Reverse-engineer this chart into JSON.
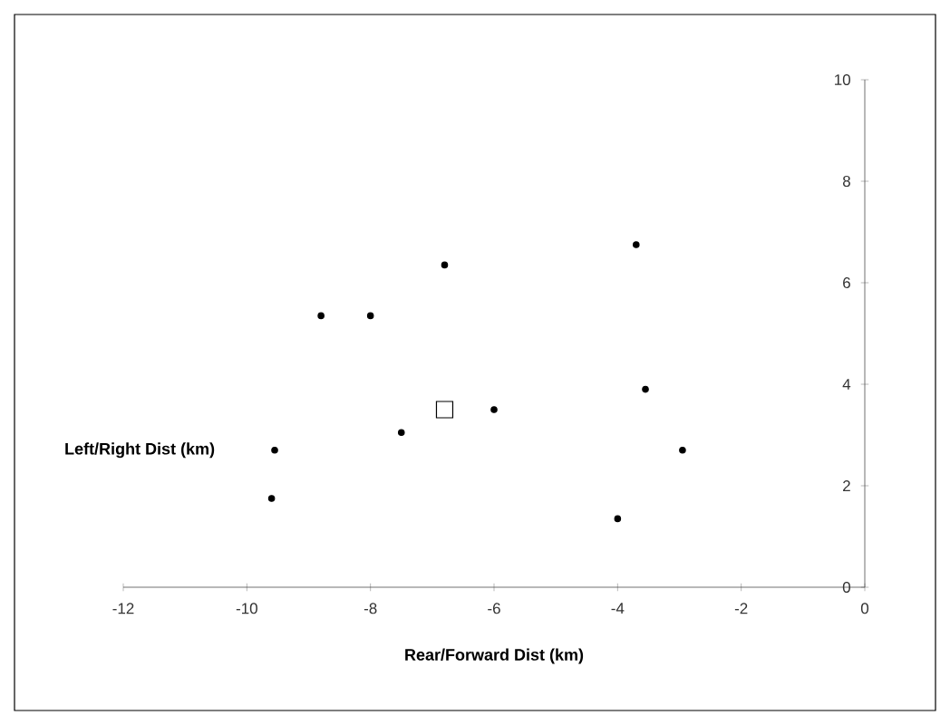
{
  "chart_data": {
    "type": "scatter",
    "xlabel": "Rear/Forward Dist (km)",
    "ylabel": "Left/Right Dist (km)",
    "xlim": [
      -12,
      0
    ],
    "ylim": [
      0,
      10
    ],
    "xticks": [
      -12,
      -10,
      -8,
      -6,
      -4,
      -2,
      0
    ],
    "yticks": [
      0,
      2,
      4,
      6,
      8,
      10
    ],
    "grid": false,
    "series": [
      {
        "color": "#000000",
        "marker": "circle",
        "x": [
          -8.8,
          -8.0,
          -6.8,
          -3.7,
          -7.5,
          -6.0,
          -3.55,
          -2.95,
          -4.0,
          -9.6,
          -9.55
        ],
        "values": [
          5.35,
          5.35,
          6.35,
          6.75,
          3.05,
          3.5,
          3.9,
          2.7,
          1.35,
          1.75,
          2.7
        ]
      },
      {
        "color": "#000000",
        "marker": "square",
        "x": [
          -6.8
        ],
        "values": [
          3.5
        ]
      }
    ]
  }
}
